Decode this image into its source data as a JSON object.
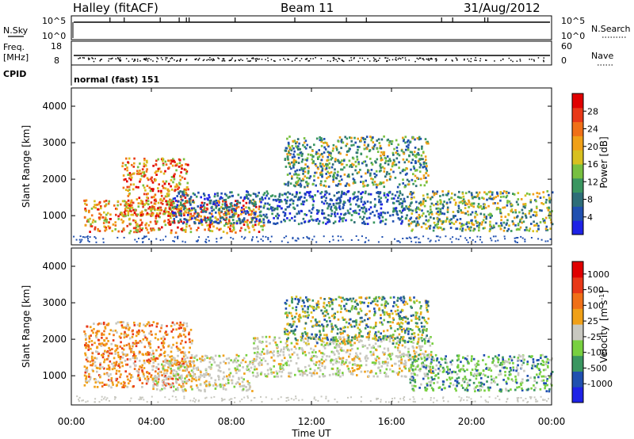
{
  "header": {
    "station": "Halley (fitACF)",
    "beam": "Beam 11",
    "date": "31/Aug/2012"
  },
  "strips": {
    "nsky_label": "N.Sky",
    "nsky_ticks": [
      "10^5",
      "10^0"
    ],
    "nsearch_label": "N.Search",
    "nsearch_ticks": [
      "10^5",
      "10^0"
    ],
    "freq_label": "Freq.",
    "freq_unit": "[MHz]",
    "freq_ticks": [
      "18",
      "8"
    ],
    "nave_label": "Nave",
    "nave_ticks": [
      "60",
      "0"
    ],
    "cpid_label": "CPID",
    "cpid_value": "normal (fast) 151"
  },
  "chart_data": [
    {
      "type": "heatmap",
      "name": "power-panel",
      "title": "",
      "xlabel": "Time UT",
      "ylabel": "Slant Range [km]",
      "xlim": [
        0,
        24
      ],
      "ylim": [
        200,
        4500
      ],
      "x_ticks": [
        "00:00",
        "04:00",
        "08:00",
        "12:00",
        "16:00",
        "20:00",
        "00:00"
      ],
      "y_ticks": [
        "1000",
        "2000",
        "3000",
        "4000"
      ],
      "y_tick_values": [
        1000,
        2000,
        3000,
        4000
      ],
      "colorbar": {
        "label": "Power [dB]",
        "tick_labels": [
          "4",
          "8",
          "12",
          "16",
          "20",
          "24",
          "28"
        ],
        "colors": [
          "#1e22e6",
          "#2050b0",
          "#2e6e78",
          "#3a9660",
          "#78c040",
          "#d8c020",
          "#f0a018",
          "#f07018",
          "#e83818",
          "#e00000"
        ]
      },
      "regions": [
        {
          "t0": 0.6,
          "t1": 9.6,
          "r0": 550,
          "r1": 1450,
          "dominant": "orange-red"
        },
        {
          "t0": 2.5,
          "t1": 5.8,
          "r0": 1000,
          "r1": 2600,
          "dominant": "orange-red"
        },
        {
          "t0": 5.0,
          "t1": 17.0,
          "r0": 800,
          "r1": 1700,
          "dominant": "blue"
        },
        {
          "t0": 10.6,
          "t1": 17.8,
          "r0": 1800,
          "r1": 3200,
          "dominant": "blue-green"
        },
        {
          "t0": 16.8,
          "t1": 24.0,
          "r0": 600,
          "r1": 1700,
          "dominant": "green-orange"
        }
      ]
    },
    {
      "type": "heatmap",
      "name": "velocity-panel",
      "title": "",
      "xlabel": "Time UT",
      "ylabel": "Slant Range [km]",
      "xlim": [
        0,
        24
      ],
      "ylim": [
        200,
        4500
      ],
      "x_ticks": [
        "00:00",
        "04:00",
        "08:00",
        "12:00",
        "16:00",
        "20:00",
        "00:00"
      ],
      "y_ticks": [
        "1000",
        "2000",
        "3000",
        "4000"
      ],
      "y_tick_values": [
        1000,
        2000,
        3000,
        4000
      ],
      "colorbar": {
        "label": "Velocity",
        "unit": "[m s",
        "unit_sup": "-1",
        "unit_end": "]",
        "tick_labels": [
          "1000",
          "500",
          "100",
          "25",
          "-25",
          "-100",
          "-500",
          "-1000"
        ],
        "colors": [
          "#1e22e6",
          "#2050b0",
          "#3a9660",
          "#78d040",
          "#c8c8c0",
          "#f0a018",
          "#f07018",
          "#e83818",
          "#e00000"
        ]
      },
      "regions": [
        {
          "t0": 0.6,
          "t1": 6.0,
          "r0": 700,
          "r1": 2500,
          "dominant": "orange"
        },
        {
          "t0": 4.0,
          "t1": 9.0,
          "r0": 600,
          "r1": 1600,
          "dominant": "grey"
        },
        {
          "t0": 9.0,
          "t1": 18.0,
          "r0": 1000,
          "r1": 2100,
          "dominant": "grey"
        },
        {
          "t0": 10.6,
          "t1": 17.8,
          "r0": 1900,
          "r1": 3200,
          "dominant": "green-orange"
        },
        {
          "t0": 16.8,
          "t1": 24.0,
          "r0": 600,
          "r1": 1600,
          "dominant": "green-grey"
        }
      ]
    }
  ]
}
